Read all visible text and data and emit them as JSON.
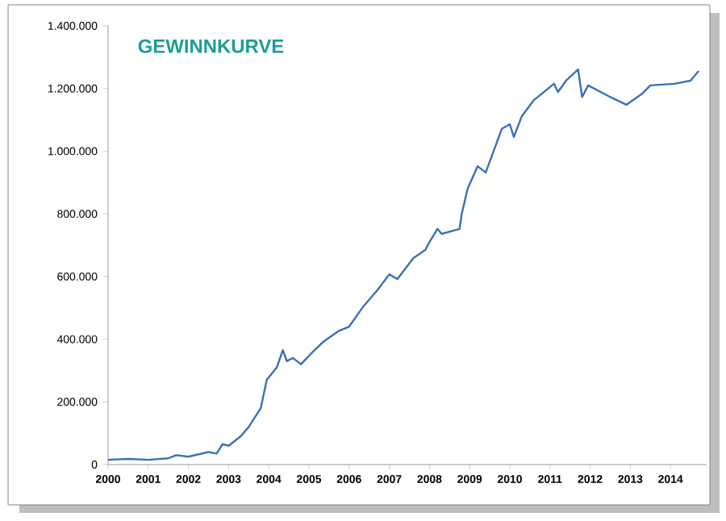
{
  "chart_data": {
    "type": "line",
    "title": "GEWINNKURVE",
    "grid": false,
    "marker": "none",
    "line_style": "solid",
    "xlim": [
      2000,
      2014.9
    ],
    "xticks": [
      2000,
      2001,
      2002,
      2003,
      2004,
      2005,
      2006,
      2007,
      2008,
      2009,
      2010,
      2011,
      2012,
      2013,
      2014
    ],
    "ylim": [
      0,
      1400000
    ],
    "yticks": [
      {
        "value": 0,
        "label": "0"
      },
      {
        "value": 200000,
        "label": "200.000"
      },
      {
        "value": 400000,
        "label": "400.000"
      },
      {
        "value": 600000,
        "label": "600.000"
      },
      {
        "value": 800000,
        "label": "800.000"
      },
      {
        "value": 1000000,
        "label": "1.000.000"
      },
      {
        "value": 1200000,
        "label": "1.200.000"
      },
      {
        "value": 1400000,
        "label": "1.400.000"
      }
    ],
    "series": [
      {
        "color": "#3a70b8",
        "x": [
          2000,
          2000.5,
          2001,
          2001.5,
          2001.7,
          2002,
          2002.5,
          2002.7,
          2002.85,
          2003,
          2003.3,
          2003.5,
          2003.8,
          2003.95,
          2004.2,
          2004.35,
          2004.45,
          2004.6,
          2004.8,
          2005.1,
          2005.35,
          2005.75,
          2006,
          2006.35,
          2006.7,
          2007,
          2007.2,
          2007.6,
          2007.9,
          2008,
          2008.2,
          2008.3,
          2008.75,
          2008.8,
          2008.95,
          2009.2,
          2009.4,
          2009.8,
          2010,
          2010.1,
          2010.3,
          2010.6,
          2011.1,
          2011.2,
          2011.4,
          2011.7,
          2011.8,
          2011.95,
          2012.5,
          2012.9,
          2013.3,
          2013.5,
          2014.1,
          2014.5,
          2014.7
        ],
        "values": [
          15000,
          18000,
          15000,
          20000,
          30000,
          25000,
          40000,
          35000,
          65000,
          60000,
          90000,
          120000,
          180000,
          270000,
          310000,
          365000,
          330000,
          340000,
          320000,
          360000,
          391000,
          427000,
          440000,
          504000,
          556000,
          607000,
          592000,
          659000,
          685000,
          710000,
          752000,
          736000,
          752000,
          798000,
          880000,
          952000,
          932000,
          1071000,
          1086000,
          1045000,
          1112000,
          1163000,
          1215000,
          1189000,
          1225000,
          1261000,
          1173000,
          1210000,
          1173000,
          1148000,
          1184000,
          1210000,
          1215000,
          1225000,
          1256000
        ]
      }
    ]
  }
}
